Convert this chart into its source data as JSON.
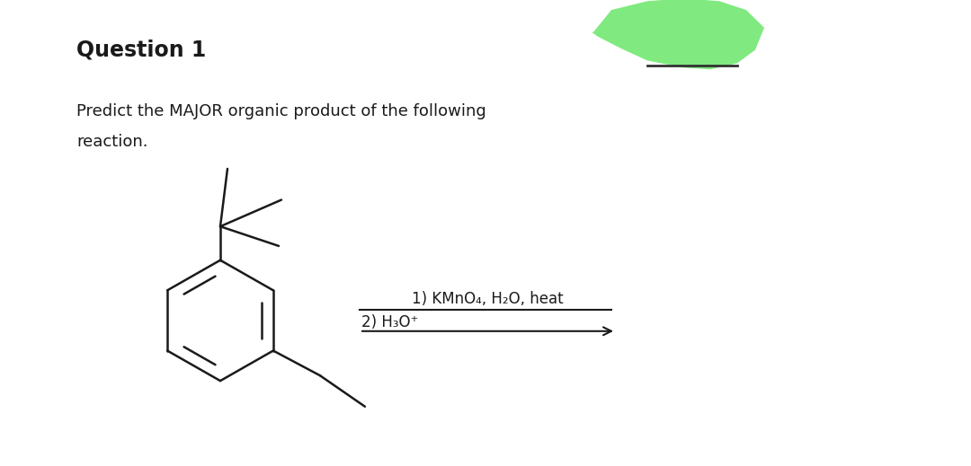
{
  "title": "Question 1",
  "description_line1": "Predict the MAJOR organic product of the following",
  "description_line2": "reaction.",
  "reagent_line1": "1) KMnO₄, H₂O, heat",
  "reagent_line2": "2) H₃O⁺",
  "bg_color": "#ffffff",
  "text_color": "#1a1a1a",
  "title_fontsize": 17,
  "desc_fontsize": 13,
  "reagent_fontsize": 12,
  "highlight_color": "#72e872",
  "lw": 1.8
}
